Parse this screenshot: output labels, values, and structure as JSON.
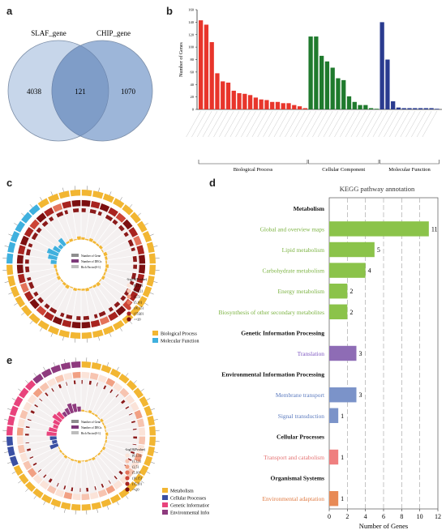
{
  "panel_labels": {
    "a": "a",
    "b": "b",
    "c": "c",
    "d": "d",
    "e": "e"
  },
  "chart_data": [
    {
      "panel": "a",
      "type": "venn",
      "sets": [
        {
          "name": "SLAF_gene",
          "only": 4038,
          "color": "#c7d6ea"
        },
        {
          "name": "CHIP_gene",
          "only": 1070,
          "color": "#9db6d9"
        }
      ],
      "intersection": 121,
      "intersection_color": "#7f9dc8"
    },
    {
      "panel": "b",
      "type": "bar",
      "ylabel": "Number of Genes",
      "ylim": [
        0,
        160
      ],
      "yticks": [
        0,
        20,
        40,
        60,
        80,
        100,
        120,
        140,
        160
      ],
      "groups": [
        {
          "name": "Biological Process",
          "color": "#e8352b",
          "values": [
            143,
            136,
            108,
            58,
            45,
            43,
            30,
            26,
            25,
            23,
            19,
            16,
            15,
            12,
            12,
            10,
            10,
            7,
            5,
            2
          ]
        },
        {
          "name": "Cellular Component",
          "color": "#1f7a2d",
          "values": [
            117,
            117,
            86,
            77,
            67,
            50,
            47,
            21,
            12,
            7,
            7,
            2,
            1
          ]
        },
        {
          "name": "Molecular Function",
          "color": "#2a3b8f",
          "values": [
            140,
            80,
            13,
            3,
            2,
            2,
            2,
            2,
            2,
            2,
            1
          ]
        }
      ]
    },
    {
      "panel": "c",
      "type": "circos",
      "legend_series": [
        "Number of Gene",
        "Number of DEGs",
        "Rich Factor(0-1)"
      ],
      "pvalue_title": "-log10(Pvalue)",
      "pvalue_bins": [
        "(0,1.3]",
        "(1.3,2]",
        "(2,5]",
        "(5,10]",
        "(10,15]",
        "(15,20]",
        ">=20"
      ],
      "categories": [
        {
          "name": "Biological Process",
          "color": "#f2b632"
        },
        {
          "name": "Molecular Function",
          "color": "#3fb0de"
        }
      ]
    },
    {
      "panel": "d",
      "type": "bar",
      "orientation": "horizontal",
      "title": "KEGG pathway annotation",
      "xlabel": "Number of Genes",
      "xlim": [
        0,
        12
      ],
      "xticks": [
        0,
        2,
        4,
        6,
        8,
        10,
        12
      ],
      "groups": [
        {
          "name": "Metabolism",
          "color": "#8bc34a",
          "label_color": "#7cb342",
          "items": [
            {
              "label": "Global and overview maps",
              "value": 11
            },
            {
              "label": "Lipid metabolism",
              "value": 5
            },
            {
              "label": "Carbohydrate metabolism",
              "value": 4
            },
            {
              "label": "Energy metabolism",
              "value": 2
            },
            {
              "label": "Biosynthesis of other secondary metabolites",
              "value": 2
            }
          ]
        },
        {
          "name": "Genetic Information Processing",
          "color": "#8e6cb5",
          "label_color": "#7e57c2",
          "items": [
            {
              "label": "Translation",
              "value": 3
            }
          ]
        },
        {
          "name": "Environmental Information Processing",
          "color": "#7b93c9",
          "label_color": "#5c7bbf",
          "items": [
            {
              "label": "Membrane transport",
              "value": 3
            },
            {
              "label": "Signal transduction",
              "value": 1
            }
          ]
        },
        {
          "name": "Cellular Processes",
          "color": "#ef7f7f",
          "label_color": "#e57373",
          "items": [
            {
              "label": "Transport and catabolism",
              "value": 1
            }
          ]
        },
        {
          "name": "Organismal Systems",
          "color": "#e88a55",
          "label_color": "#e07b43",
          "items": [
            {
              "label": "Environmental adaptation",
              "value": 1
            }
          ]
        }
      ]
    },
    {
      "panel": "e",
      "type": "circos",
      "legend_series": [
        "Number of Gene",
        "Number of DEGs",
        "Rich Factor(0-1)"
      ],
      "pvalue_title": "-log10(Pvalue)",
      "pvalue_bins": [
        "(0,1.3]",
        "(1.3,2]",
        "(2,5]",
        "(5,10]",
        "(10,15]",
        "(15,20]",
        ">=20"
      ],
      "categories": [
        {
          "name": "Metabolism",
          "color": "#f2b632"
        },
        {
          "name": "Cellular Processes",
          "color": "#3a4fa3"
        },
        {
          "name": "Genetic Information Processing",
          "color": "#e8437c"
        },
        {
          "name": "Environmental Information Processing",
          "color": "#8e3a7e"
        }
      ]
    }
  ],
  "colors": {
    "pvalue_scale": [
      "#fbe3d8",
      "#f7c4b0",
      "#f1a083",
      "#e4735a",
      "#cc4436",
      "#a8231f",
      "#7c0f10"
    ],
    "dark_red": "#8b1a1a",
    "axis": "#333333"
  }
}
